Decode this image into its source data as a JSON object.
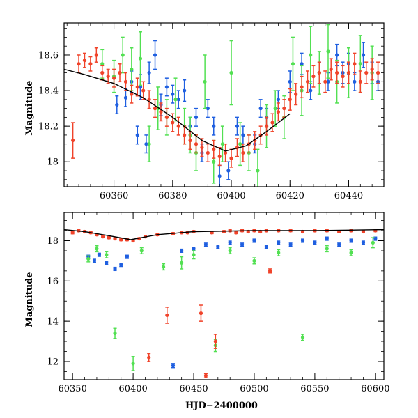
{
  "colors": {
    "blue": "#1f5fe0",
    "green": "#52e052",
    "red": "#f0432a",
    "model": "#000000",
    "frame": "#000000"
  },
  "chart_data": [
    {
      "id": "top",
      "type": "scatter",
      "title": "",
      "xlabel": "",
      "ylabel": "Magnitude",
      "xlim": [
        60343,
        60452
      ],
      "ylim": [
        18.78,
        17.86
      ],
      "y_inverted": true,
      "xticks": [
        60360,
        60380,
        60400,
        60420,
        60440
      ],
      "yticks": [
        18,
        18.2,
        18.4,
        18.6
      ],
      "ytick_labels": [
        "18",
        "18.2",
        "18.4",
        "18.6"
      ],
      "grid": false,
      "model_curve": {
        "x": [
          60343,
          60350,
          60360,
          60370,
          60380,
          60390,
          60398,
          60405,
          60412,
          60420
        ],
        "y": [
          18.52,
          18.49,
          18.44,
          18.36,
          18.25,
          18.12,
          18.06,
          18.09,
          18.17,
          18.27
        ]
      },
      "series": [
        {
          "color_key": "blue",
          "x": [
            60361,
            60364,
            60366,
            60368,
            60369,
            60371,
            60372,
            60374,
            60376,
            60378,
            60380,
            60382,
            60384,
            60386,
            60388,
            60390,
            60392,
            60394,
            60396,
            60399,
            60402,
            60404,
            60408,
            60410,
            60412,
            60416,
            60420,
            60424,
            60427,
            60430,
            60433,
            60436,
            60438,
            60440,
            60442,
            60445,
            60448,
            60450
          ],
          "y": [
            18.32,
            18.36,
            18.45,
            18.15,
            18.42,
            18.1,
            18.5,
            18.6,
            18.32,
            18.42,
            18.38,
            18.35,
            18.4,
            18.2,
            18.25,
            18.05,
            18.3,
            18.2,
            17.92,
            17.95,
            18.2,
            18.15,
            18.1,
            18.3,
            18.25,
            18.35,
            18.45,
            18.55,
            18.4,
            18.5,
            18.45,
            18.6,
            18.5,
            18.55,
            18.45,
            18.6,
            18.5,
            18.45
          ],
          "err": [
            0.05,
            0.05,
            0.06,
            0.05,
            0.07,
            0.05,
            0.06,
            0.08,
            0.06,
            0.05,
            0.05,
            0.05,
            0.06,
            0.05,
            0.05,
            0.05,
            0.05,
            0.05,
            0.06,
            0.05,
            0.05,
            0.05,
            0.05,
            0.05,
            0.05,
            0.05,
            0.06,
            0.06,
            0.05,
            0.06,
            0.05,
            0.06,
            0.06,
            0.06,
            0.05,
            0.07,
            0.06,
            0.05
          ]
        },
        {
          "color_key": "green",
          "x": [
            60356,
            60360,
            60363,
            60366,
            60369,
            60372,
            60375,
            60378,
            60381,
            60384,
            60386,
            60388,
            60391,
            60394,
            60397,
            60400,
            60403,
            60406,
            60409,
            60412,
            60415,
            60418,
            60421,
            60424,
            60427,
            60430,
            60433,
            60436,
            60440,
            60444,
            60448
          ],
          "y": [
            18.55,
            18.48,
            18.6,
            18.52,
            18.58,
            18.1,
            18.3,
            18.25,
            18.35,
            18.2,
            18.15,
            18.05,
            18.45,
            18.0,
            18.1,
            18.5,
            18.1,
            18.05,
            17.95,
            18.2,
            18.3,
            18.25,
            18.55,
            18.4,
            18.6,
            18.5,
            18.62,
            18.45,
            18.5,
            18.55,
            18.5
          ],
          "err": [
            0.08,
            0.09,
            0.1,
            0.12,
            0.15,
            0.1,
            0.12,
            0.1,
            0.12,
            0.1,
            0.1,
            0.1,
            0.15,
            0.12,
            0.1,
            0.18,
            0.12,
            0.1,
            0.12,
            0.12,
            0.1,
            0.12,
            0.15,
            0.14,
            0.16,
            0.12,
            0.15,
            0.12,
            0.14,
            0.16,
            0.15
          ]
        },
        {
          "color_key": "red",
          "x": [
            60346,
            60348,
            60350,
            60352,
            60354,
            60356,
            60358,
            60360,
            60362,
            60364,
            60366,
            60368,
            60370,
            60372,
            60374,
            60376,
            60378,
            60380,
            60382,
            60384,
            60386,
            60388,
            60390,
            60392,
            60394,
            60396,
            60398,
            60400,
            60402,
            60404,
            60406,
            60408,
            60410,
            60412,
            60414,
            60416,
            60418,
            60420,
            60422,
            60424,
            60426,
            60428,
            60430,
            60432,
            60434,
            60436,
            60438,
            60440,
            60442,
            60444,
            60446,
            60448,
            60450
          ],
          "y": [
            18.12,
            18.55,
            18.57,
            18.55,
            18.6,
            18.5,
            18.48,
            18.47,
            18.5,
            18.45,
            18.38,
            18.42,
            18.4,
            18.35,
            18.3,
            18.28,
            18.25,
            18.22,
            18.2,
            18.15,
            18.12,
            18.1,
            18.08,
            18.05,
            18.07,
            18.03,
            18.05,
            18.02,
            18.08,
            18.05,
            18.1,
            18.12,
            18.15,
            18.2,
            18.22,
            18.28,
            18.3,
            18.35,
            18.38,
            18.42,
            18.45,
            18.48,
            18.5,
            18.45,
            18.52,
            18.5,
            18.48,
            18.5,
            18.55,
            18.45,
            18.5,
            18.52,
            18.5
          ],
          "err": [
            0.1,
            0.05,
            0.04,
            0.04,
            0.04,
            0.04,
            0.04,
            0.05,
            0.05,
            0.05,
            0.05,
            0.05,
            0.05,
            0.05,
            0.05,
            0.05,
            0.05,
            0.05,
            0.05,
            0.05,
            0.05,
            0.05,
            0.05,
            0.05,
            0.05,
            0.05,
            0.05,
            0.05,
            0.05,
            0.05,
            0.05,
            0.05,
            0.05,
            0.05,
            0.05,
            0.05,
            0.05,
            0.06,
            0.06,
            0.06,
            0.06,
            0.06,
            0.06,
            0.06,
            0.06,
            0.06,
            0.06,
            0.06,
            0.06,
            0.06,
            0.06,
            0.06,
            0.06
          ]
        }
      ]
    },
    {
      "id": "bottom",
      "type": "scatter",
      "title": "",
      "xlabel": "HJD−2400000",
      "ylabel": "Magnitude",
      "xlim": [
        60343,
        60607
      ],
      "ylim": [
        19.4,
        11.1
      ],
      "y_inverted": true,
      "xticks": [
        60350,
        60400,
        60450,
        60500,
        60550,
        60600
      ],
      "yticks": [
        12,
        14,
        16,
        18
      ],
      "ytick_labels": [
        "12",
        "14",
        "16",
        "18"
      ],
      "grid": false,
      "model_curve": {
        "x": [
          60343,
          60360,
          60380,
          60398,
          60420,
          60450,
          60500,
          60550,
          60607
        ],
        "y": [
          18.55,
          18.45,
          18.25,
          18.05,
          18.3,
          18.45,
          18.5,
          18.5,
          18.55
        ]
      },
      "series": [
        {
          "color_key": "blue",
          "x": [
            60363,
            60368,
            60372,
            60378,
            60385,
            60390,
            60395,
            60433,
            60440,
            60450,
            60460,
            60470,
            60480,
            60490,
            60500,
            60510,
            60520,
            60530,
            60540,
            60550,
            60560,
            60570,
            60580,
            60590,
            60600
          ],
          "y": [
            17.2,
            17.0,
            17.3,
            16.9,
            16.6,
            16.8,
            17.2,
            11.8,
            17.5,
            17.6,
            17.8,
            17.7,
            17.9,
            17.8,
            18.0,
            17.7,
            17.9,
            17.8,
            18.0,
            17.9,
            18.1,
            17.8,
            18.0,
            17.9,
            18.1
          ],
          "err": [
            0.08,
            0.08,
            0.08,
            0.08,
            0.08,
            0.08,
            0.08,
            0.1,
            0.08,
            0.08,
            0.08,
            0.08,
            0.08,
            0.08,
            0.08,
            0.08,
            0.08,
            0.08,
            0.08,
            0.08,
            0.08,
            0.08,
            0.08,
            0.08,
            0.08
          ]
        },
        {
          "color_key": "green",
          "x": [
            60363,
            60370,
            60378,
            60385,
            60400,
            60407,
            60425,
            60440,
            60450,
            60468,
            60480,
            60500,
            60520,
            60540,
            60560,
            60580,
            60598
          ],
          "y": [
            17.1,
            17.6,
            17.3,
            13.4,
            11.9,
            17.5,
            16.7,
            16.9,
            17.3,
            12.8,
            17.5,
            17.0,
            17.4,
            13.2,
            17.6,
            17.4,
            17.9
          ],
          "err": [
            0.15,
            0.15,
            0.15,
            0.25,
            0.35,
            0.15,
            0.15,
            0.3,
            0.2,
            0.3,
            0.15,
            0.15,
            0.15,
            0.15,
            0.15,
            0.15,
            0.25
          ]
        },
        {
          "color_key": "red",
          "x": [
            60350,
            60355,
            60360,
            60365,
            60370,
            60375,
            60380,
            60385,
            60390,
            60395,
            60400,
            60405,
            60410,
            60413,
            60420,
            60428,
            60433,
            60440,
            60445,
            60450,
            60456,
            60460,
            60465,
            60468,
            60475,
            60480,
            60485,
            60490,
            60495,
            60500,
            60505,
            60510,
            60513,
            60520,
            60530,
            60540,
            60550,
            60560,
            60570,
            60580,
            60590,
            60600
          ],
          "y": [
            18.4,
            18.5,
            18.45,
            18.4,
            18.3,
            18.2,
            18.15,
            18.1,
            18.05,
            18.05,
            18.0,
            18.1,
            18.2,
            12.2,
            18.3,
            14.3,
            18.35,
            18.4,
            18.4,
            18.45,
            14.4,
            11.3,
            18.4,
            13.0,
            18.45,
            18.5,
            18.4,
            18.5,
            18.45,
            18.5,
            18.45,
            18.5,
            16.5,
            18.5,
            18.5,
            18.45,
            18.5,
            18.5,
            18.45,
            18.5,
            18.45,
            18.5
          ],
          "err": [
            0.06,
            0.05,
            0.05,
            0.05,
            0.05,
            0.05,
            0.05,
            0.05,
            0.05,
            0.05,
            0.05,
            0.05,
            0.05,
            0.2,
            0.05,
            0.4,
            0.05,
            0.05,
            0.05,
            0.05,
            0.4,
            0.1,
            0.05,
            0.35,
            0.05,
            0.05,
            0.05,
            0.05,
            0.05,
            0.05,
            0.05,
            0.05,
            0.1,
            0.05,
            0.05,
            0.05,
            0.05,
            0.05,
            0.05,
            0.05,
            0.05,
            0.05
          ]
        }
      ]
    }
  ]
}
